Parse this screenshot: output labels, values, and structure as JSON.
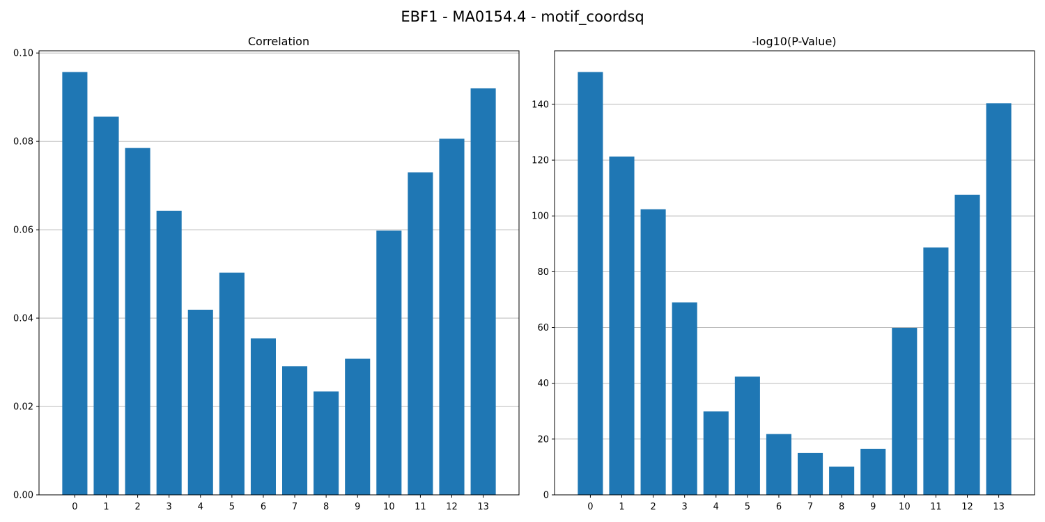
{
  "figure": {
    "title": "EBF1 - MA0154.4 - motif_coordsq"
  },
  "chart_data": [
    {
      "type": "bar",
      "title": "Correlation",
      "xlabel": "",
      "ylabel": "",
      "categories": [
        "0",
        "1",
        "2",
        "3",
        "4",
        "5",
        "6",
        "7",
        "8",
        "9",
        "10",
        "11",
        "12",
        "13"
      ],
      "values": [
        0.0957,
        0.0856,
        0.0785,
        0.0643,
        0.0419,
        0.0503,
        0.0354,
        0.0291,
        0.0234,
        0.0308,
        0.0598,
        0.073,
        0.0806,
        0.092
      ],
      "ylim": [
        0,
        0.1005
      ],
      "yticks": [
        0.0,
        0.02,
        0.04,
        0.06,
        0.08,
        0.1
      ],
      "ytick_labels": [
        "0.00",
        "0.02",
        "0.04",
        "0.06",
        "0.08",
        "0.10"
      ],
      "grid": "y",
      "color": "#1f77b4"
    },
    {
      "type": "bar",
      "title": "-log10(P-Value)",
      "xlabel": "",
      "ylabel": "",
      "categories": [
        "0",
        "1",
        "2",
        "3",
        "4",
        "5",
        "6",
        "7",
        "8",
        "9",
        "10",
        "11",
        "12",
        "13"
      ],
      "values": [
        151.6,
        121.3,
        102.4,
        69.0,
        29.9,
        42.4,
        21.8,
        15.0,
        10.1,
        16.5,
        59.9,
        88.7,
        107.6,
        140.4
      ],
      "ylim": [
        0,
        159.2
      ],
      "yticks": [
        0,
        20,
        40,
        60,
        80,
        100,
        120,
        140
      ],
      "ytick_labels": [
        "0",
        "20",
        "40",
        "60",
        "80",
        "100",
        "120",
        "140"
      ],
      "grid": "y",
      "color": "#1f77b4"
    }
  ]
}
